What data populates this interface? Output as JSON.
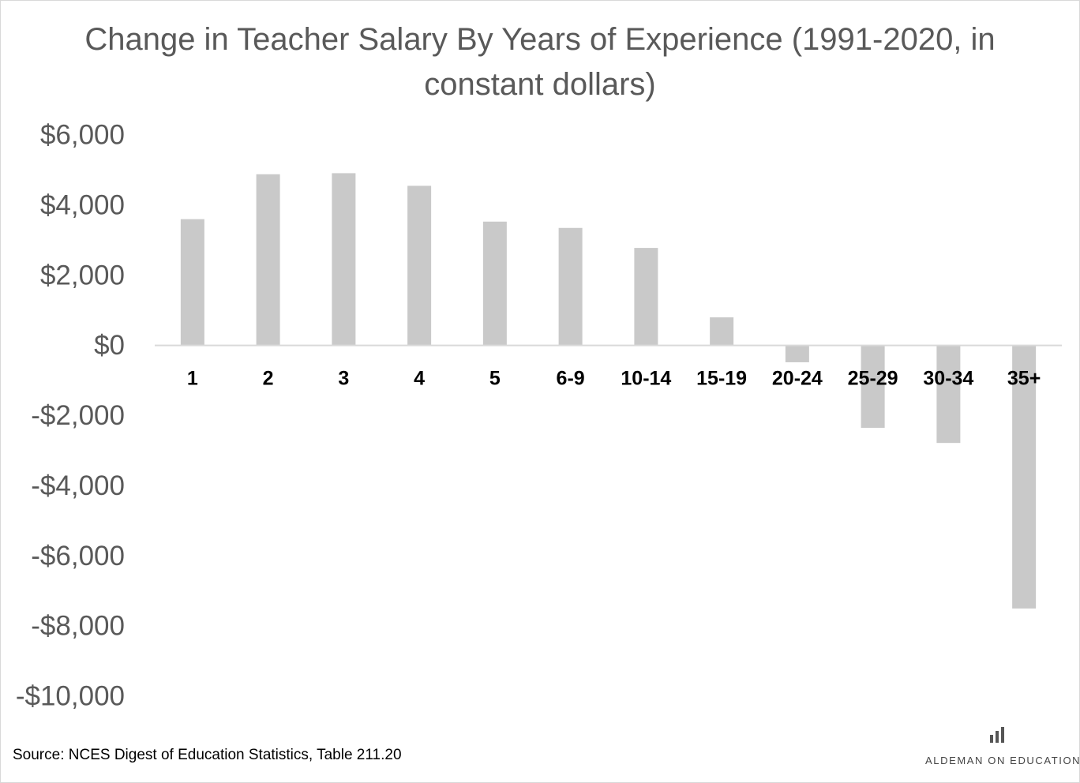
{
  "chart_data": {
    "type": "bar",
    "title": "Change in Teacher Salary By Years of Experience (1991-2020, in constant dollars)",
    "xlabel": "",
    "ylabel": "",
    "categories": [
      "1",
      "2",
      "3",
      "4",
      "5",
      "6-9",
      "10-14",
      "15-19",
      "20-24",
      "25-29",
      "30-34",
      "35+"
    ],
    "values": [
      3600,
      4880,
      4910,
      4550,
      3530,
      3350,
      2780,
      800,
      -480,
      -2350,
      -2780,
      -7500
    ],
    "ylim": [
      -10000,
      6000
    ],
    "yticks": [
      6000,
      4000,
      2000,
      0,
      -2000,
      -4000,
      -6000,
      -8000,
      -10000
    ],
    "ytick_labels": [
      "$6,000",
      "$4,000",
      "$2,000",
      "$0",
      "-$2,000",
      "-$4,000",
      "-$6,000",
      "-$8,000",
      "-$10,000"
    ],
    "grid": false,
    "legend": "none",
    "bar_color": "#c9c9c9"
  },
  "source_note": "Source: NCES Digest of Education Statistics, Table 211.20",
  "brand": {
    "name": "ALDEMAN ON EDUCATION",
    "icon": "bar-chart-icon"
  }
}
